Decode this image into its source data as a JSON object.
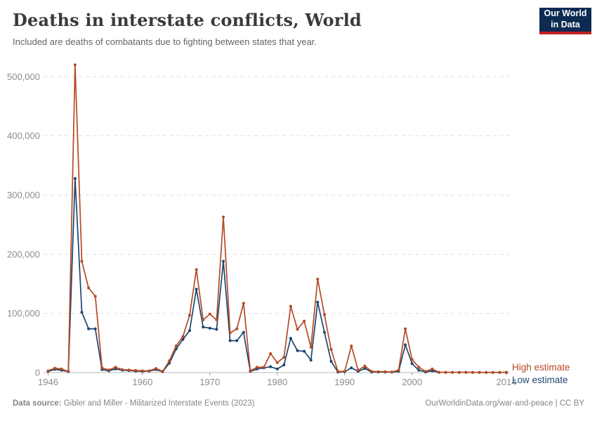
{
  "header": {
    "title": "Deaths in interstate conflicts, World",
    "subtitle": "Included are deaths of combatants due to fighting between states that year."
  },
  "logo": {
    "line1": "Our World",
    "line2": "in Data",
    "bg_color": "#0d2b52",
    "bar_color": "#c0201e"
  },
  "chart_data": {
    "type": "line",
    "title": "Deaths in interstate conflicts, World",
    "xlabel": "",
    "ylabel": "",
    "ylim": [
      0,
      500000
    ],
    "grid": "horizontal-dashed",
    "legend_position": "right-of-line-end",
    "x": [
      1946,
      1947,
      1948,
      1949,
      1950,
      1951,
      1952,
      1953,
      1954,
      1955,
      1956,
      1957,
      1958,
      1959,
      1960,
      1961,
      1962,
      1963,
      1964,
      1965,
      1966,
      1967,
      1968,
      1969,
      1970,
      1971,
      1972,
      1973,
      1974,
      1975,
      1976,
      1977,
      1978,
      1979,
      1980,
      1981,
      1982,
      1983,
      1984,
      1985,
      1986,
      1987,
      1988,
      1989,
      1990,
      1991,
      1992,
      1993,
      1994,
      1995,
      1996,
      1997,
      1998,
      1999,
      2000,
      2001,
      2002,
      2003,
      2004,
      2005,
      2006,
      2007,
      2008,
      2009,
      2010,
      2011,
      2012,
      2013,
      2014
    ],
    "series": [
      {
        "name": "High estimate",
        "color": "#b44a24",
        "values": [
          3000,
          7500,
          6000,
          2000,
          520000,
          188000,
          143000,
          129000,
          8000,
          4500,
          9000,
          5000,
          4500,
          3500,
          3000,
          3000,
          7000,
          2000,
          20000,
          45000,
          61000,
          97000,
          174000,
          89000,
          99000,
          89000,
          263000,
          67000,
          74000,
          117000,
          3000,
          9000,
          9000,
          32000,
          17000,
          26000,
          112000,
          73000,
          87000,
          43000,
          158000,
          98000,
          39000,
          2000,
          2000,
          45000,
          4000,
          11000,
          2000,
          1500,
          1500,
          1000,
          4000,
          74000,
          22000,
          9000,
          2000,
          6000,
          500,
          400,
          400,
          400,
          600,
          400,
          300,
          300,
          300,
          300,
          500
        ]
      },
      {
        "name": "Low estimate",
        "color": "#1d4670",
        "values": [
          2000,
          5500,
          4000,
          1500,
          328000,
          102000,
          74000,
          74000,
          5000,
          3000,
          6000,
          4000,
          3500,
          2500,
          2000,
          2500,
          5000,
          1500,
          16000,
          40000,
          56000,
          71000,
          141000,
          77000,
          75000,
          73000,
          188000,
          54000,
          54000,
          68000,
          2000,
          6000,
          8000,
          10000,
          6000,
          13000,
          58000,
          37000,
          36000,
          21000,
          119000,
          68000,
          19000,
          1000,
          1500,
          8000,
          2000,
          7000,
          1000,
          1000,
          1000,
          800,
          2000,
          47000,
          15000,
          4000,
          1000,
          3000,
          300,
          300,
          300,
          300,
          400,
          300,
          200,
          200,
          200,
          200,
          300
        ]
      }
    ],
    "y_ticks": [
      {
        "value": 0,
        "label": "0"
      },
      {
        "value": 100000,
        "label": "100,000"
      },
      {
        "value": 200000,
        "label": "200,000"
      },
      {
        "value": 300000,
        "label": "300,000"
      },
      {
        "value": 400000,
        "label": "400,000"
      },
      {
        "value": 500000,
        "label": "500,000"
      }
    ],
    "x_ticks": [
      {
        "value": 1946,
        "label": "1946"
      },
      {
        "value": 1960,
        "label": "1960"
      },
      {
        "value": 1970,
        "label": "1970"
      },
      {
        "value": 1980,
        "label": "1980"
      },
      {
        "value": 1990,
        "label": "1990"
      },
      {
        "value": 2000,
        "label": "2000"
      },
      {
        "value": 2014,
        "label": "2014"
      }
    ],
    "colors": {
      "gridline": "#dddddd",
      "baseline": "#b8b8b8",
      "tick": "#999999",
      "axis_text": "#8c8c8c"
    }
  },
  "footer": {
    "source_label": "Data source:",
    "source_text": " Gibler and Miller - Militarized Interstate Events (2023)",
    "url": "OurWorldinData.org/war-and-peace",
    "sep": " | ",
    "license": "CC BY"
  }
}
